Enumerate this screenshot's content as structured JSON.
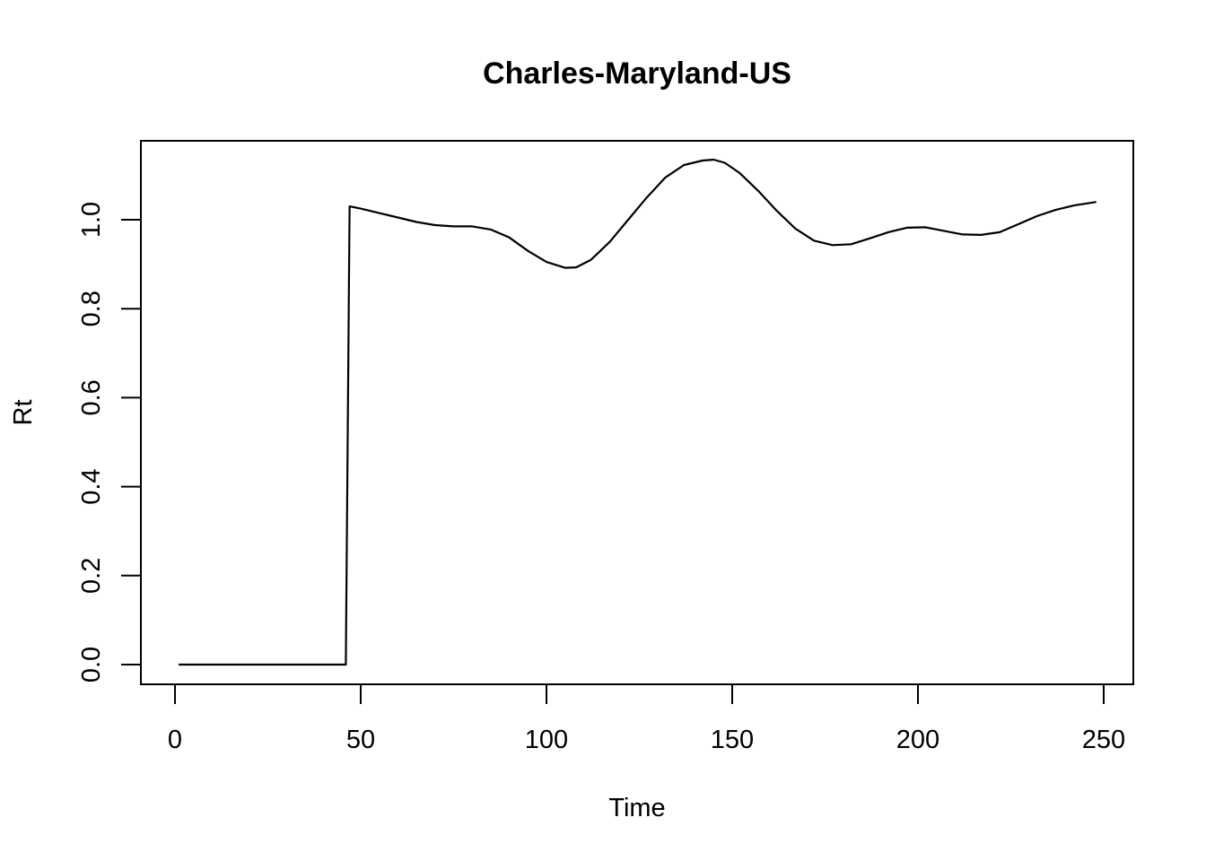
{
  "chart_data": {
    "type": "line",
    "title": "Charles-Maryland-US",
    "xlabel": "Time",
    "ylabel": "Rt",
    "xlim": [
      0,
      250
    ],
    "ylim": [
      0,
      1.13
    ],
    "xticks": [
      0,
      50,
      100,
      150,
      200,
      250
    ],
    "yticks": [
      "0.0",
      "0.2",
      "0.4",
      "0.6",
      "0.8",
      "1.0"
    ],
    "grid": false,
    "series": [
      {
        "color": "#000000",
        "x": [
          1,
          10,
          20,
          30,
          40,
          46,
          47,
          50,
          55,
          60,
          65,
          70,
          75,
          80,
          85,
          90,
          95,
          100,
          105,
          108,
          112,
          117,
          122,
          127,
          132,
          137,
          142,
          145,
          148,
          152,
          157,
          162,
          167,
          172,
          177,
          182,
          187,
          192,
          197,
          202,
          207,
          212,
          217,
          222,
          227,
          232,
          237,
          242,
          248
        ],
        "y": [
          0,
          0,
          0,
          0,
          0,
          0,
          1.03,
          1.025,
          1.015,
          1.005,
          0.995,
          0.988,
          0.985,
          0.985,
          0.978,
          0.96,
          0.93,
          0.905,
          0.892,
          0.893,
          0.91,
          0.95,
          1.0,
          1.05,
          1.095,
          1.123,
          1.133,
          1.135,
          1.128,
          1.105,
          1.065,
          1.02,
          0.98,
          0.953,
          0.943,
          0.945,
          0.958,
          0.972,
          0.982,
          0.983,
          0.975,
          0.967,
          0.966,
          0.972,
          0.99,
          1.008,
          1.022,
          1.032,
          1.04
        ]
      }
    ]
  }
}
